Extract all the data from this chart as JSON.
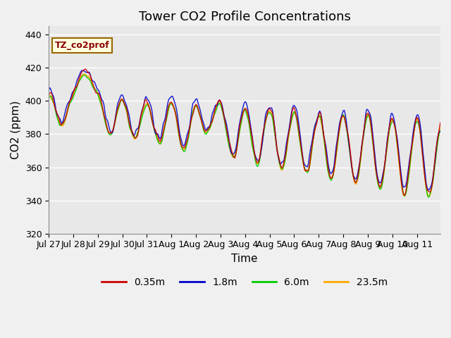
{
  "title": "Tower CO2 Profile Concentrations",
  "xlabel": "Time",
  "ylabel": "CO2 (ppm)",
  "ylim": [
    320,
    445
  ],
  "yticks": [
    320,
    340,
    360,
    380,
    400,
    420,
    440
  ],
  "series_labels": [
    "0.35m",
    "1.8m",
    "6.0m",
    "23.5m"
  ],
  "series_colors": [
    "#cc0000",
    "#0000cc",
    "#00cc00",
    "#ffaa00"
  ],
  "series_linewidths": [
    1.0,
    1.0,
    1.0,
    1.5
  ],
  "annotation_text": "TZ_co2prof",
  "plot_bg_color": "#e8e8e8",
  "x_tick_labels": [
    "Jul 27",
    "Jul 28",
    "Jul 29",
    "Jul 30",
    "Jul 31",
    "Aug 1",
    "Aug 2",
    "Aug 3",
    "Aug 4",
    "Aug 5",
    "Aug 6",
    "Aug 7",
    "Aug 8",
    "Aug 9",
    "Aug 10",
    "Aug 11"
  ],
  "title_fontsize": 13,
  "axis_label_fontsize": 11,
  "tick_fontsize": 9
}
